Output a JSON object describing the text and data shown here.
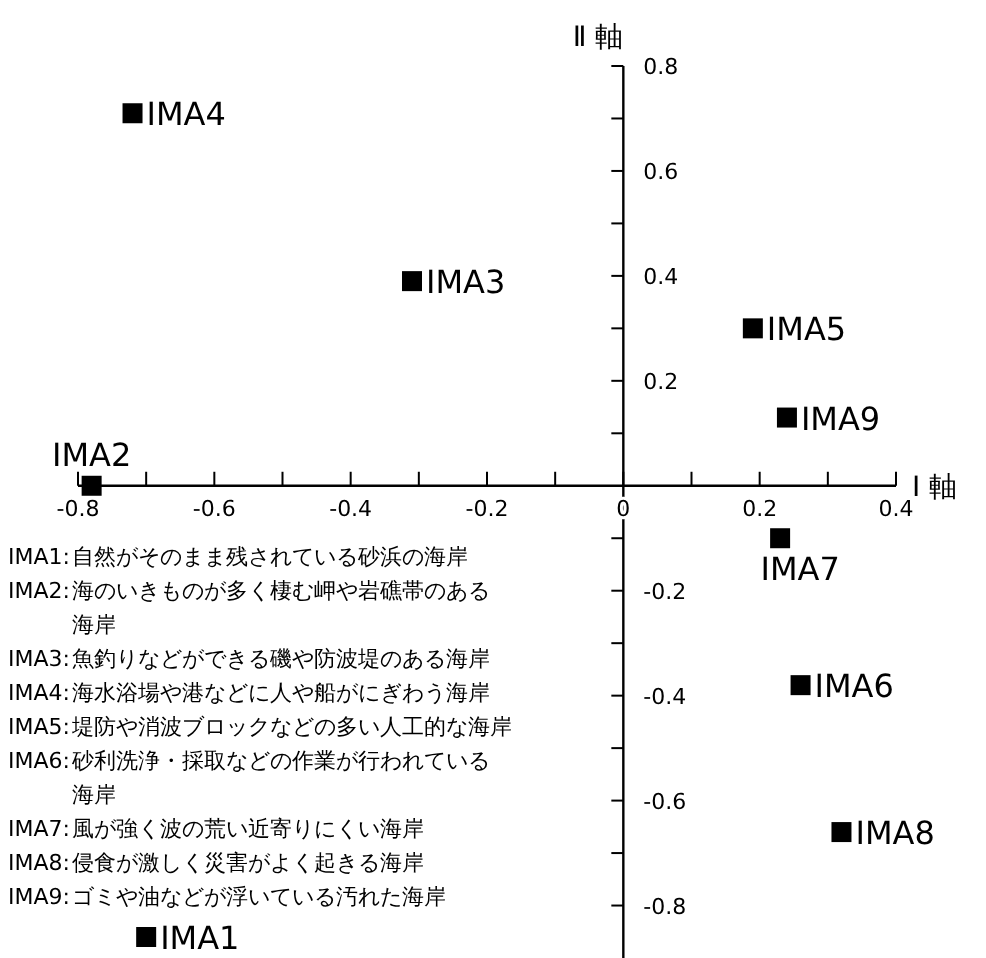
{
  "chart_data": {
    "type": "scatter",
    "xlabel": "Ⅰ 軸",
    "ylabel": "Ⅱ 軸",
    "marker": "square",
    "grid": false,
    "x": [
      -0.7,
      -0.78,
      -0.31,
      -0.72,
      0.19,
      0.26,
      0.23,
      0.32,
      0.24
    ],
    "series": [
      {
        "color": "#000000",
        "values": [
          -0.86,
          0.0,
          0.39,
          0.71,
          0.3,
          -0.38,
          -0.1,
          -0.66,
          0.13
        ]
      }
    ],
    "xlim": [
      -0.8,
      0.4
    ],
    "ylim": [
      -0.9,
      0.8
    ],
    "xticks": [
      -0.8,
      {
        "value": -0.7,
        "label": null
      },
      -0.6,
      {
        "value": -0.5,
        "label": null
      },
      -0.4,
      {
        "value": -0.3,
        "label": null
      },
      -0.2,
      {
        "value": -0.1,
        "label": null
      },
      0,
      {
        "value": 0.1,
        "label": null
      },
      0.2,
      {
        "value": 0.3,
        "label": null
      },
      0.4
    ],
    "yticks": [
      0.8,
      {
        "value": 0.7,
        "label": null
      },
      0.6,
      {
        "value": 0.5,
        "label": null
      },
      0.4,
      {
        "value": 0.3,
        "label": null
      },
      0.2,
      {
        "value": 0.1,
        "label": null
      },
      {
        "value": -0.1,
        "label": null
      },
      -0.2,
      {
        "value": -0.3,
        "label": null
      },
      -0.4,
      {
        "value": -0.5,
        "label": null
      },
      -0.6,
      {
        "value": -0.7,
        "label": null
      },
      -0.8
    ],
    "annotations": [
      {
        "text": "IMA1",
        "x": -0.7,
        "y": -0.86
      },
      {
        "text": "IMA2",
        "x": -0.78,
        "y": 0.0
      },
      {
        "text": "IMA3",
        "x": -0.31,
        "y": 0.39
      },
      {
        "text": "IMA4",
        "x": -0.72,
        "y": 0.71
      },
      {
        "text": "IMA5",
        "x": 0.19,
        "y": 0.3
      },
      {
        "text": "IMA6",
        "x": 0.26,
        "y": -0.38
      },
      {
        "text": "IMA7",
        "x": 0.23,
        "y": -0.1
      },
      {
        "text": "IMA8",
        "x": 0.32,
        "y": -0.66
      },
      {
        "text": "IMA9",
        "x": 0.24,
        "y": 0.13
      },
      "IMA1:自然がそのまま残されている砂浜の海岸",
      "IMA2:海のいきものが多く棲む岬や岩礁帯のある海岸",
      "IMA3:魚釣りなどができる磯や防波堤のある海岸",
      "IMA4:海水浴場や港などに人や船がにぎわう海岸",
      "IMA5:堤防や消波ブロックなどの多い人工的な海岸",
      "IMA6:砂利洗浄・採取などの作業が行われている海岸",
      "IMA7:風が強く波の荒い近寄りにくい海岸",
      "IMA8:侵食が激しく災害がよく起きる海岸",
      "IMA9:ゴミや油などが浮いている汚れた海岸"
    ]
  }
}
